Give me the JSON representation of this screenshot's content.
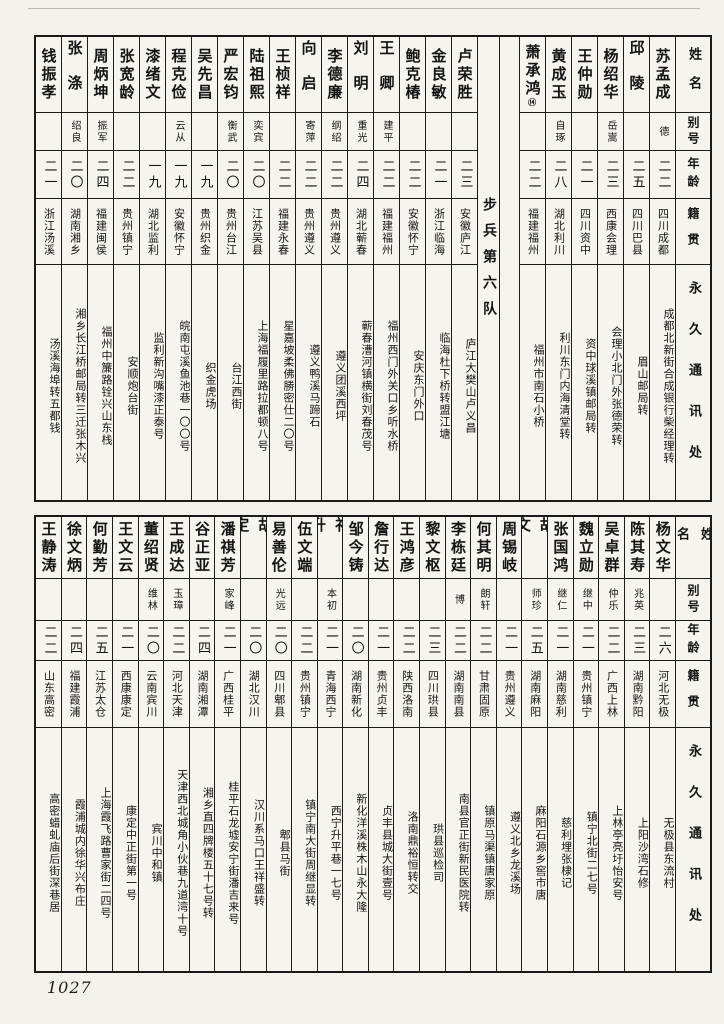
{
  "page": {
    "page_number": "1027",
    "row_headers": {
      "name": "姓名",
      "alias": "别号",
      "age": "年龄",
      "origin": "籍贯",
      "address": "永久通讯处"
    },
    "blocks": [
      {
        "id": "top",
        "unit_label": "步兵第六队",
        "unit_insert_after": 6,
        "entries": [
          {
            "name": "苏孟成",
            "name_mark": "",
            "alias": "德",
            "age": "二二",
            "origin": "四川成都",
            "address": "成都北新街合成银行柴经理转"
          },
          {
            "name": "邱陵",
            "name_mark": "",
            "alias": "",
            "age": "二五",
            "origin": "四川巴县",
            "address": "眉山邮局转"
          },
          {
            "name": "杨绍华",
            "name_mark": "",
            "alias": "岳嵩",
            "age": "二三",
            "origin": "西康会理",
            "address": "会理小北门外张德荣转"
          },
          {
            "name": "王仲勋",
            "name_mark": "",
            "alias": "",
            "age": "二一",
            "origin": "四川资中",
            "address": "资中球溪镇邮局转"
          },
          {
            "name": "黄成玉",
            "name_mark": "",
            "alias": "自琢",
            "age": "二八",
            "origin": "湖北利川",
            "address": "利川东门内海清堂转"
          },
          {
            "name": "萧承鸿",
            "name_mark": "⑭",
            "alias": "",
            "age": "二二",
            "origin": "福建福州",
            "address": "福州市南石小桥"
          },
          {
            "name": "卢荣胜",
            "name_mark": "",
            "alias": "",
            "age": "二三",
            "origin": "安徽庐江",
            "address": "庐江大樊山卢义昌"
          },
          {
            "name": "金良敏",
            "name_mark": "",
            "alias": "",
            "age": "二一",
            "origin": "浙江临海",
            "address": "临海杜下桥转盟江塘"
          },
          {
            "name": "鲍克椿",
            "name_mark": "",
            "alias": "",
            "age": "二二",
            "origin": "安徽怀宁",
            "address": "安庆东门外口"
          },
          {
            "name": "王卿",
            "name_mark": "",
            "alias": "建平",
            "age": "二二",
            "origin": "福建福州",
            "address": "福州西门外关口乡听水桥"
          },
          {
            "name": "刘明",
            "name_mark": "",
            "alias": "重光",
            "age": "二四",
            "origin": "湖北蕲春",
            "address": "蕲春漕河镇横街刘春茂号"
          },
          {
            "name": "李德廉",
            "name_mark": "",
            "alias": "纲绍",
            "age": "二二",
            "origin": "贵州遵义",
            "address": "遵义团溪西坪"
          },
          {
            "name": "向启",
            "name_mark": "",
            "alias": "寄萍",
            "age": "二二",
            "origin": "贵州遵义",
            "address": "遵义鸭溪马蹄石"
          },
          {
            "name": "王桢祥",
            "name_mark": "",
            "alias": "",
            "age": "二二",
            "origin": "福建永春",
            "address": "星嘉坡柔佛勝密仕二〇号"
          },
          {
            "name": "陆祖熙",
            "name_mark": "",
            "alias": "奕宾",
            "age": "二〇",
            "origin": "江苏吴县",
            "address": "上海福履里路拉都顿八号"
          },
          {
            "name": "严宏钧",
            "name_mark": "",
            "alias": "衡武",
            "age": "二〇",
            "origin": "贵州台江",
            "address": "台江西街"
          },
          {
            "name": "吴先昌",
            "name_mark": "",
            "alias": "",
            "age": "一九",
            "origin": "贵州织金",
            "address": "织金虎场"
          },
          {
            "name": "程克俭",
            "name_mark": "",
            "alias": "云从",
            "age": "一九",
            "origin": "安徽怀宁",
            "address": "皖南屯溪鱼池巷一〇〇号"
          },
          {
            "name": "漆绪文",
            "name_mark": "",
            "alias": "",
            "age": "一九",
            "origin": "湖北监利",
            "address": "监利新沟嘴漆正泰号"
          },
          {
            "name": "张宽龄",
            "name_mark": "",
            "alias": "",
            "age": "二二",
            "origin": "贵州镇宁",
            "address": "安顺炮台街"
          },
          {
            "name": "周炳坤",
            "name_mark": "",
            "alias": "振军",
            "age": "二四",
            "origin": "福建闽侯",
            "address": "福州中簾路铨兴山东栈"
          },
          {
            "name": "张涤",
            "name_mark": "",
            "alias": "绍良",
            "age": "二〇",
            "origin": "湖南湘乡",
            "address": "湘乡长江桥邮局转三迁张木兴"
          },
          {
            "name": "钱振孝",
            "name_mark": "",
            "alias": "",
            "age": "二一",
            "origin": "浙江汤溪",
            "address": "汤溪海埠转五都钱"
          }
        ]
      },
      {
        "id": "bottom",
        "unit_label": "",
        "unit_insert_after": -1,
        "entries": [
          {
            "name": "杨文华",
            "name_mark": "",
            "alias": "",
            "age": "二六",
            "origin": "河北无极",
            "address": "无极县东流村"
          },
          {
            "name": "陈其寿",
            "name_mark": "",
            "alias": "兆英",
            "age": "二三",
            "origin": "湖南黔阳",
            "address": "上阳沙湾石修"
          },
          {
            "name": "吴卓群",
            "name_mark": "",
            "alias": "仲乐",
            "age": "二二",
            "origin": "广西上林",
            "address": "上林亭亮圩怡安号"
          },
          {
            "name": "魏立勋",
            "name_mark": "",
            "alias": "继中",
            "age": "二一",
            "origin": "贵州镇宁",
            "address": "镇宁北街二七号"
          },
          {
            "name": "张国鸿",
            "name_mark": "",
            "alias": "继仁",
            "age": "二一",
            "origin": "湖南慈利",
            "address": "慈利埋张棣记"
          },
          {
            "name": "胡文",
            "name_mark": "",
            "alias": "师珍",
            "age": "二五",
            "origin": "湖南麻阳",
            "address": "麻阳石源乡窖市唐"
          },
          {
            "name": "周锡岐",
            "name_mark": "",
            "alias": "",
            "age": "二一",
            "origin": "贵州遵义",
            "address": "遵义北乡龙溪场"
          },
          {
            "name": "何其明",
            "name_mark": "",
            "alias": "朗轩",
            "age": "二二",
            "origin": "甘肃固原",
            "address": "镇原马渠镇唐家原"
          },
          {
            "name": "李栋廷",
            "name_mark": "",
            "alias": "博",
            "age": "二二",
            "origin": "湖南南县",
            "address": "南县官正街新民医院转"
          },
          {
            "name": "黎文枢",
            "name_mark": "",
            "alias": "",
            "age": "二三",
            "origin": "四川珙县",
            "address": "珙县巡检司"
          },
          {
            "name": "王鸿彦",
            "name_mark": "",
            "alias": "",
            "age": "二二",
            "origin": "陕西洛南",
            "address": "洛南鼎裕恒转交"
          },
          {
            "name": "詹行达",
            "name_mark": "",
            "alias": "",
            "age": "二一",
            "origin": "贵州贞丰",
            "address": "贞丰县城大街壹号"
          },
          {
            "name": "邹今铸",
            "name_mark": "",
            "alias": "",
            "age": "二〇",
            "origin": "湖南新化",
            "address": "新化洋溪株木山永大隆"
          },
          {
            "name": "祁升",
            "name_mark": "",
            "alias": "本初",
            "age": "二一",
            "origin": "青海西宁",
            "address": "西宁升平巷一七号"
          },
          {
            "name": "伍文端",
            "name_mark": "",
            "alias": "",
            "age": "二二",
            "origin": "贵州镇宁",
            "address": "镇宁南大街周继显转"
          },
          {
            "name": "易善伦",
            "name_mark": "",
            "alias": "光远",
            "age": "二〇",
            "origin": "四川郫县",
            "address": "郫县马街"
          },
          {
            "name": "胡定",
            "name_mark": "",
            "alias": "",
            "age": "二〇",
            "origin": "湖北汉川",
            "address": "汉川系马口王祥盛转"
          },
          {
            "name": "潘祺芳",
            "name_mark": "",
            "alias": "家峰",
            "age": "二一",
            "origin": "广西桂平",
            "address": "桂平石龙墟安宁街潘吉来号"
          },
          {
            "name": "谷正亚",
            "name_mark": "",
            "alias": "",
            "age": "二四",
            "origin": "湖南湘潭",
            "address": "湘乡直四牌楼五十七号转"
          },
          {
            "name": "王成达",
            "name_mark": "",
            "alias": "玉璋",
            "age": "二二",
            "origin": "河北天津",
            "address": "天津西北城角小伙巷九道湾十号"
          },
          {
            "name": "董绍贤",
            "name_mark": "",
            "alias": "维林",
            "age": "二〇",
            "origin": "云南宾川",
            "address": "宾川中和镇"
          },
          {
            "name": "王文云",
            "name_mark": "",
            "alias": "",
            "age": "二一",
            "origin": "西康康定",
            "address": "康定中正街第一号"
          },
          {
            "name": "何勤芳",
            "name_mark": "",
            "alias": "",
            "age": "二五",
            "origin": "江苏太仓",
            "address": "上海霞飞路曹家街二四号"
          },
          {
            "name": "徐文炳",
            "name_mark": "",
            "alias": "",
            "age": "二四",
            "origin": "福建霞浦",
            "address": "霞浦城内徐华兴布庄"
          },
          {
            "name": "王静涛",
            "name_mark": "",
            "alias": "",
            "age": "二二",
            "origin": "山东高密",
            "address": "高密蜡虬庙后街深巷居"
          }
        ]
      }
    ]
  }
}
